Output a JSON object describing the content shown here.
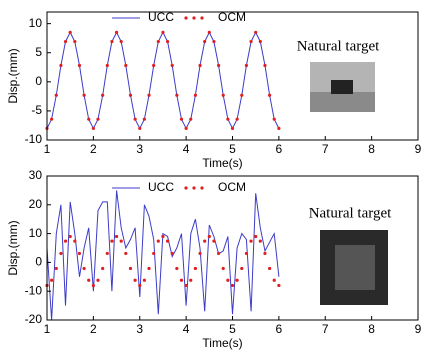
{
  "chart_data": [
    {
      "type": "line",
      "annotation": "Natural target",
      "xlabel": "Time(s)",
      "ylabel": "Disp.(mm)",
      "x": [
        1.0,
        1.1,
        1.2,
        1.3,
        1.4,
        1.5,
        1.6,
        1.7,
        1.8,
        1.9,
        2.0,
        2.1,
        2.2,
        2.3,
        2.4,
        2.5,
        2.6,
        2.7,
        2.8,
        2.9,
        3.0,
        3.1,
        3.2,
        3.3,
        3.4,
        3.5,
        3.6,
        3.7,
        3.8,
        3.9,
        4.0,
        4.1,
        4.2,
        4.3,
        4.4,
        4.5,
        4.6,
        4.7,
        4.8,
        4.9,
        5.0,
        5.1,
        5.2,
        5.3,
        5.4,
        5.5,
        5.6,
        5.7,
        5.8,
        5.9,
        6.0
      ],
      "series": [
        {
          "name": "UCC",
          "color": "#3c3cc8",
          "style": "line",
          "values": [
            -8,
            -6.42,
            -2.3,
            2.8,
            6.92,
            8.5,
            6.92,
            2.8,
            -2.3,
            -6.42,
            -8,
            -6.42,
            -2.3,
            2.8,
            6.92,
            8.5,
            6.92,
            2.8,
            -2.3,
            -6.42,
            -8,
            -6.42,
            -2.3,
            2.8,
            6.92,
            8.5,
            6.92,
            2.8,
            -2.3,
            -6.42,
            -8,
            -6.42,
            -2.3,
            2.8,
            6.92,
            8.5,
            6.92,
            2.8,
            -2.3,
            -6.42,
            -8,
            -6.42,
            -2.3,
            2.8,
            6.92,
            8.5,
            6.92,
            2.8,
            -2.3,
            -6.42,
            -8
          ]
        },
        {
          "name": "OCM",
          "color": "#e02020",
          "style": "markers",
          "values": [
            -8,
            -6.42,
            -2.3,
            2.8,
            6.92,
            8.5,
            6.92,
            2.8,
            -2.3,
            -6.42,
            -8,
            -6.42,
            -2.3,
            2.8,
            6.92,
            8.5,
            6.92,
            2.8,
            -2.3,
            -6.42,
            -8,
            -6.42,
            -2.3,
            2.8,
            6.92,
            8.5,
            6.92,
            2.8,
            -2.3,
            -6.42,
            -8,
            -6.42,
            -2.3,
            2.8,
            6.92,
            8.5,
            6.92,
            2.8,
            -2.3,
            -6.42,
            -8,
            -6.42,
            -2.3,
            2.8,
            6.92,
            8.5,
            6.92,
            2.8,
            -2.3,
            -6.42,
            -8
          ]
        }
      ],
      "xlim": [
        1,
        9
      ],
      "xticks": [
        1,
        2,
        3,
        4,
        5,
        6,
        7,
        8,
        9
      ],
      "ylim": [
        -10,
        12
      ],
      "yticks": [
        -10,
        -5,
        0,
        5,
        10
      ]
    },
    {
      "type": "line",
      "annotation": "Natural target",
      "xlabel": "Time(s)",
      "ylabel": "Disp.(mm)",
      "x": [
        1.0,
        1.1,
        1.2,
        1.3,
        1.4,
        1.5,
        1.6,
        1.7,
        1.8,
        1.9,
        2.0,
        2.1,
        2.2,
        2.3,
        2.4,
        2.5,
        2.6,
        2.7,
        2.8,
        2.9,
        3.0,
        3.1,
        3.2,
        3.3,
        3.4,
        3.5,
        3.6,
        3.7,
        3.8,
        3.9,
        4.0,
        4.1,
        4.2,
        4.3,
        4.4,
        4.5,
        4.6,
        4.7,
        4.8,
        4.9,
        5.0,
        5.1,
        5.2,
        5.3,
        5.4,
        5.5,
        5.6,
        5.7,
        5.8,
        5.9,
        6.0
      ],
      "series": [
        {
          "name": "UCC",
          "color": "#3c3cc8",
          "style": "line",
          "values": [
            5,
            -20,
            10,
            20,
            -15,
            21,
            10,
            -5,
            5,
            12,
            -10,
            18,
            21,
            21,
            -10,
            25,
            12,
            5,
            8,
            12,
            -12,
            20,
            16,
            8,
            -18,
            10,
            9,
            2,
            5,
            10,
            -15,
            10,
            15,
            5,
            -17,
            13,
            9,
            3,
            4,
            9,
            -18,
            5,
            10,
            8,
            -17,
            24,
            12,
            4,
            7,
            10,
            -5
          ]
        },
        {
          "name": "OCM",
          "color": "#e02020",
          "style": "markers",
          "values": [
            -8,
            -6.2,
            -2.1,
            3.1,
            7.4,
            9,
            7.4,
            3.1,
            -2.1,
            -6.2,
            -8,
            -6.2,
            -2.1,
            3.1,
            7.4,
            9,
            7.4,
            3.1,
            -2.1,
            -6.2,
            -8,
            -6.2,
            -2.1,
            3.1,
            7.4,
            9,
            7.4,
            3.1,
            -2.1,
            -6.2,
            -8,
            -6.2,
            -2.1,
            3.1,
            7.4,
            9,
            7.4,
            3.1,
            -2.1,
            -6.2,
            -8,
            -6.2,
            -2.1,
            3.1,
            7.4,
            9,
            7.4,
            3.1,
            -2.1,
            -6.2,
            -8
          ]
        }
      ],
      "xlim": [
        1,
        9
      ],
      "xticks": [
        1,
        2,
        3,
        4,
        5,
        6,
        7,
        8,
        9
      ],
      "ylim": [
        -20,
        30
      ],
      "yticks": [
        -20,
        -10,
        0,
        10,
        20,
        30
      ]
    }
  ]
}
